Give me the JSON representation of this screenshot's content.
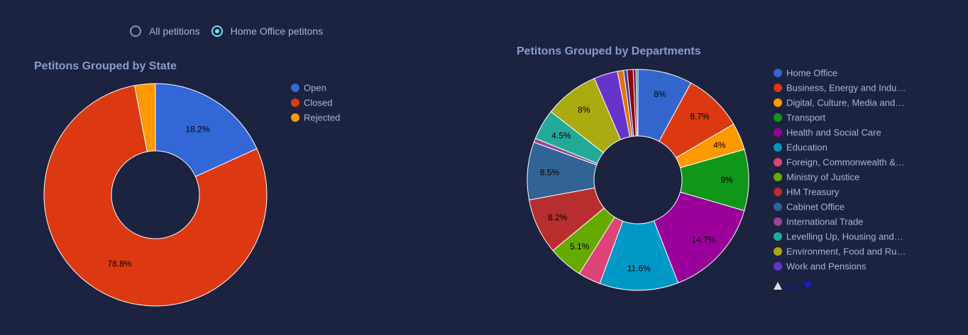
{
  "filter": {
    "options": [
      {
        "label": "All petitions",
        "selected": false
      },
      {
        "label": "Home Office petitons",
        "selected": true
      }
    ]
  },
  "chart_data": [
    {
      "type": "pie",
      "hole": true,
      "title": "Petitons Grouped by State",
      "legend_position": "right",
      "slices": [
        {
          "label": "Open",
          "value": 18.2,
          "color": "#3366d6",
          "text": "18.2%"
        },
        {
          "label": "Closed",
          "value": 78.8,
          "color": "#dc3912",
          "text": "78.8%"
        },
        {
          "label": "Rejected",
          "value": 3.0,
          "color": "#ff9900",
          "text": ""
        }
      ]
    },
    {
      "type": "pie",
      "hole": true,
      "title": "Petitons Grouped by Departments",
      "legend_position": "right",
      "legend_pager": "1/2",
      "slices": [
        {
          "label": "Home Office",
          "value": 8.0,
          "color": "#3366cc",
          "text": "8%"
        },
        {
          "label": "Business, Energy and Indu…",
          "value": 8.7,
          "color": "#dc3912",
          "text": "8.7%"
        },
        {
          "label": "Digital, Culture, Media and…",
          "value": 4.0,
          "color": "#ff9900",
          "text": "4%"
        },
        {
          "label": "Transport",
          "value": 9.0,
          "color": "#109618",
          "text": "9%"
        },
        {
          "label": "Health and Social Care",
          "value": 14.7,
          "color": "#990099",
          "text": "14.7%"
        },
        {
          "label": "Education",
          "value": 11.6,
          "color": "#0099c6",
          "text": "11.6%"
        },
        {
          "label": "Foreign, Commonwealth &…",
          "value": 3.3,
          "color": "#dd4477",
          "text": ""
        },
        {
          "label": "Ministry of Justice",
          "value": 5.1,
          "color": "#66aa00",
          "text": "5.1%"
        },
        {
          "label": "HM Treasury",
          "value": 8.2,
          "color": "#b82e2e",
          "text": "8.2%"
        },
        {
          "label": "Cabinet Office",
          "value": 8.5,
          "color": "#316395",
          "text": "8.5%"
        },
        {
          "label": "International Trade",
          "value": 0.6,
          "color": "#994499",
          "text": ""
        },
        {
          "label": "Levelling Up, Housing and…",
          "value": 4.5,
          "color": "#22aa99",
          "text": "4.5%"
        },
        {
          "label": "Environment, Food and Ru…",
          "value": 8.0,
          "color": "#aaaa11",
          "text": "8%"
        },
        {
          "label": "Work and Pensions",
          "value": 3.5,
          "color": "#6633cc",
          "text": ""
        },
        {
          "value": 0.9,
          "color": "#e67300",
          "text": ""
        },
        {
          "value": 0.5,
          "color": "#3b3eac",
          "text": ""
        },
        {
          "value": 0.9,
          "color": "#8b0707",
          "text": ""
        },
        {
          "value": 0.4,
          "color": "#651067",
          "text": ""
        },
        {
          "value": 0.3,
          "color": "#329262",
          "text": ""
        }
      ]
    }
  ]
}
